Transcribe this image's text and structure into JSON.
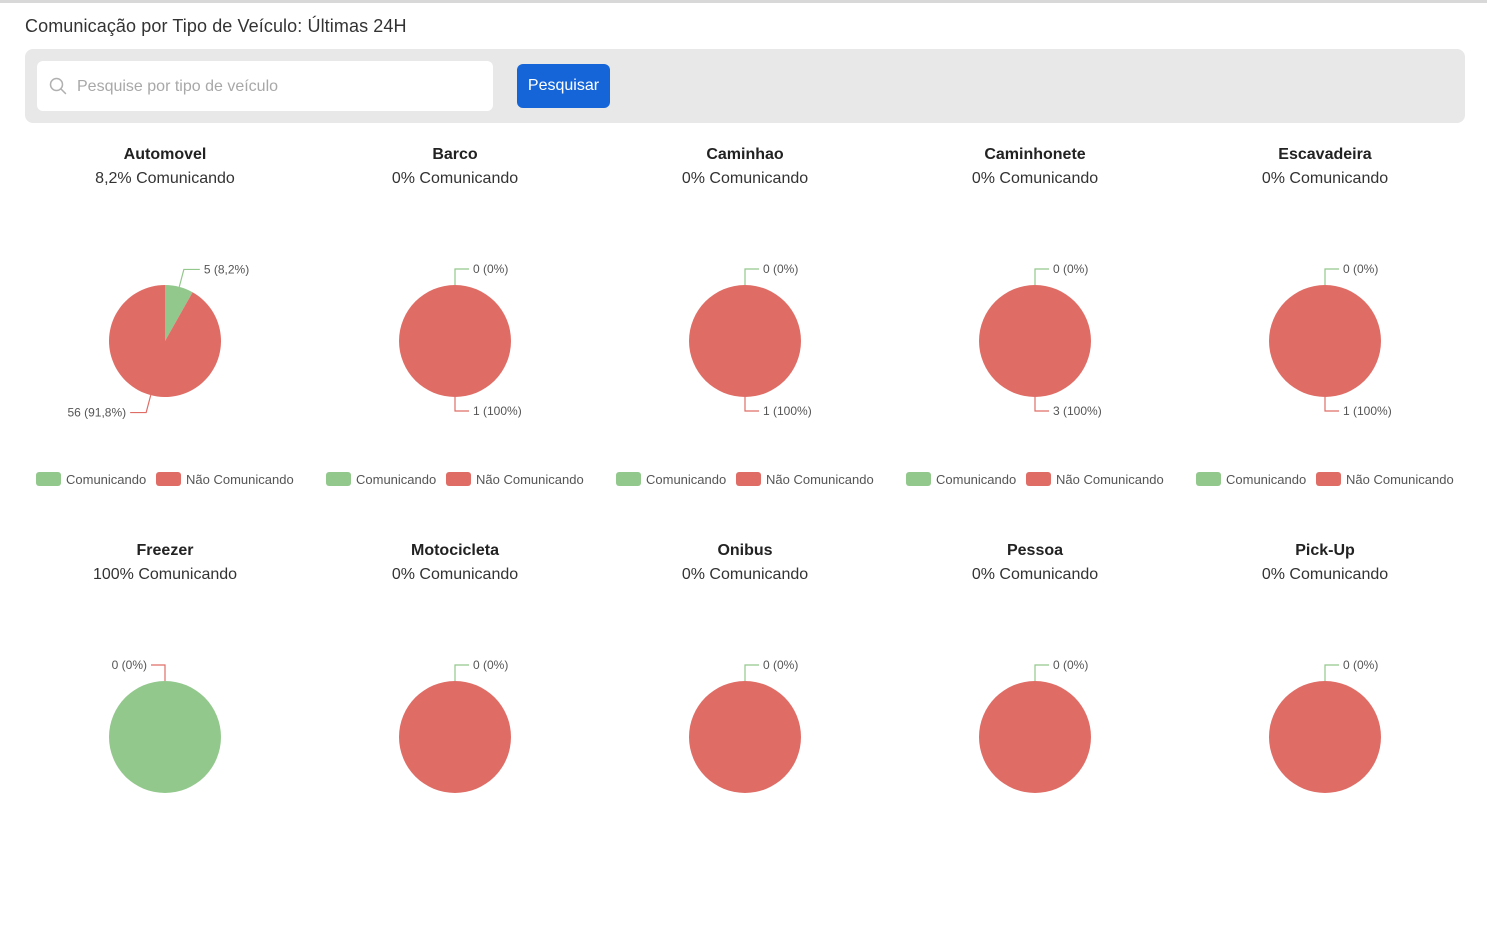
{
  "page": {
    "title": "Comunicação por Tipo de Veículo: Últimas 24H"
  },
  "search": {
    "placeholder": "Pesquise por tipo de veículo",
    "value": "",
    "button_label": "Pesquisar"
  },
  "colors": {
    "comunicando": "#93c88d",
    "nao_comunicando": "#df6d66",
    "accent": "#1565d8"
  },
  "legend": {
    "comunicando": "Comunicando",
    "nao_comunicando": "Não Comunicando"
  },
  "chart_data": [
    {
      "type": "pie",
      "title": "Automovel",
      "subtitle": "8,2% Comunicando",
      "categories": [
        "Comunicando",
        "Não Comunicando"
      ],
      "values": [
        5,
        56
      ],
      "labels": [
        "5 (8,2%)",
        "56 (91,8%)"
      ]
    },
    {
      "type": "pie",
      "title": "Barco",
      "subtitle": "0% Comunicando",
      "categories": [
        "Comunicando",
        "Não Comunicando"
      ],
      "values": [
        0,
        1
      ],
      "labels": [
        "0 (0%)",
        "1 (100%)"
      ]
    },
    {
      "type": "pie",
      "title": "Caminhao",
      "subtitle": "0% Comunicando",
      "categories": [
        "Comunicando",
        "Não Comunicando"
      ],
      "values": [
        0,
        1
      ],
      "labels": [
        "0 (0%)",
        "1 (100%)"
      ]
    },
    {
      "type": "pie",
      "title": "Caminhonete",
      "subtitle": "0% Comunicando",
      "categories": [
        "Comunicando",
        "Não Comunicando"
      ],
      "values": [
        0,
        3
      ],
      "labels": [
        "0 (0%)",
        "3 (100%)"
      ]
    },
    {
      "type": "pie",
      "title": "Escavadeira",
      "subtitle": "0% Comunicando",
      "categories": [
        "Comunicando",
        "Não Comunicando"
      ],
      "values": [
        0,
        1
      ],
      "labels": [
        "0 (0%)",
        "1 (100%)"
      ]
    },
    {
      "type": "pie",
      "title": "Freezer",
      "subtitle": "100% Comunicando",
      "categories": [
        "Comunicando",
        "Não Comunicando"
      ],
      "values": [
        1,
        0
      ],
      "labels": [
        "",
        "0 (0%)"
      ]
    },
    {
      "type": "pie",
      "title": "Motocicleta",
      "subtitle": "0% Comunicando",
      "categories": [
        "Comunicando",
        "Não Comunicando"
      ],
      "values": [
        0,
        1
      ],
      "labels": [
        "0 (0%)",
        ""
      ]
    },
    {
      "type": "pie",
      "title": "Onibus",
      "subtitle": "0% Comunicando",
      "categories": [
        "Comunicando",
        "Não Comunicando"
      ],
      "values": [
        0,
        1
      ],
      "labels": [
        "0 (0%)",
        ""
      ]
    },
    {
      "type": "pie",
      "title": "Pessoa",
      "subtitle": "0% Comunicando",
      "categories": [
        "Comunicando",
        "Não Comunicando"
      ],
      "values": [
        0,
        1
      ],
      "labels": [
        "0 (0%)",
        ""
      ]
    },
    {
      "type": "pie",
      "title": "Pick-Up",
      "subtitle": "0% Comunicando",
      "categories": [
        "Comunicando",
        "Não Comunicando"
      ],
      "values": [
        0,
        1
      ],
      "labels": [
        "0 (0%)",
        ""
      ]
    }
  ]
}
